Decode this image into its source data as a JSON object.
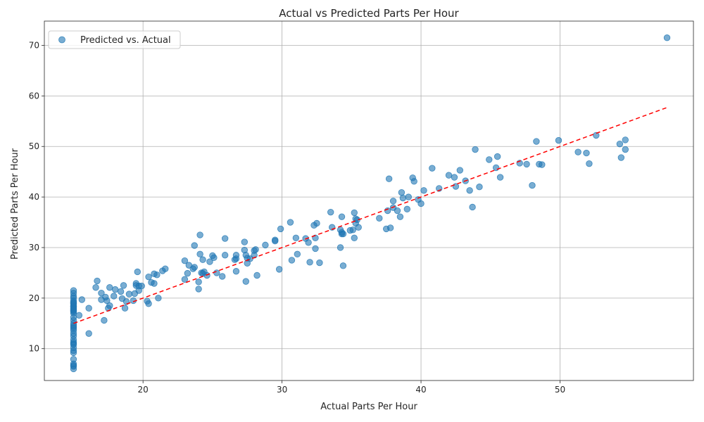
{
  "chart_data": {
    "type": "scatter",
    "title": "Actual vs Predicted Parts Per Hour",
    "xlabel": "Actual Parts Per Hour",
    "ylabel": "Predicted Parts Per Hour",
    "xlim": [
      12.9,
      59.6
    ],
    "ylim": [
      3.7,
      74.8
    ],
    "xticks": [
      20,
      30,
      40,
      50
    ],
    "yticks": [
      10,
      20,
      30,
      40,
      50,
      60,
      70
    ],
    "grid": true,
    "legend_position": "top-left",
    "series": [
      {
        "name": "Predicted vs. Actual",
        "color": "#1f77b4",
        "x": [
          15,
          15,
          15,
          15,
          15,
          15,
          15,
          15,
          15,
          15,
          15,
          15,
          15,
          15,
          15,
          15,
          15,
          15,
          15,
          15,
          15,
          15,
          15,
          15,
          15,
          15,
          15,
          15,
          15,
          15,
          15,
          15,
          15,
          15,
          15,
          15,
          15,
          15,
          15.4,
          15.6,
          16.1,
          16.1,
          16.6,
          16.7,
          17.0,
          17.0,
          17.2,
          17.3,
          17.4,
          17.5,
          17.6,
          17.6,
          17.9,
          18.0,
          18.4,
          18.5,
          18.6,
          18.7,
          18.8,
          19.0,
          19.3,
          19.4,
          19.5,
          19.5,
          19.6,
          19.7,
          19.7,
          19.9,
          20.3,
          20.4,
          20.4,
          20.6,
          20.8,
          20.8,
          21.0,
          21.1,
          21.4,
          21.6,
          23.0,
          23.0,
          23.2,
          23.3,
          23.6,
          23.7,
          23.7,
          24.0,
          24.0,
          24.1,
          24.1,
          24.2,
          24.3,
          24.3,
          24.4,
          24.6,
          24.8,
          25.0,
          25.1,
          25.3,
          25.7,
          25.9,
          25.9,
          26.6,
          26.7,
          26.7,
          26.7,
          27.3,
          27.3,
          27.4,
          27.4,
          27.5,
          27.5,
          27.7,
          28.0,
          28.0,
          28.1,
          28.2,
          28.8,
          29.5,
          29.5,
          29.8,
          29.9,
          30.6,
          30.7,
          31.0,
          31.1,
          31.7,
          31.9,
          32.0,
          32.3,
          32.4,
          32.4,
          32.5,
          32.7,
          33.5,
          33.6,
          34.2,
          34.2,
          34.3,
          34.3,
          34.3,
          34.4,
          34.4,
          34.9,
          35.1,
          35.2,
          35.2,
          35.3,
          35.3,
          35.4,
          35.5,
          37.0,
          37.5,
          37.6,
          37.7,
          37.8,
          38.0,
          38.0,
          38.3,
          38.5,
          38.6,
          38.7,
          39.0,
          39.1,
          39.4,
          39.5,
          39.8,
          40.0,
          40.2,
          40.8,
          41.3,
          42.0,
          42.4,
          42.5,
          42.8,
          43.2,
          43.5,
          43.7,
          43.9,
          44.2,
          44.9,
          45.4,
          45.5,
          45.7,
          47.1,
          47.6,
          48.0,
          48.3,
          48.5,
          48.7,
          49.9,
          51.3,
          51.9,
          52.1,
          52.6,
          54.3,
          54.4,
          54.7,
          54.7,
          57.7
        ],
        "y": [
          21.5,
          21.0,
          20.4,
          20.0,
          19.5,
          19.2,
          18.9,
          18.6,
          18.3,
          18.0,
          17.8,
          17.5,
          17.3,
          17.0,
          16.2,
          15.6,
          15.0,
          14.6,
          14.3,
          14.0,
          13.6,
          13.0,
          12.5,
          11.8,
          11.3,
          11.0,
          10.8,
          10.2,
          9.6,
          9.2,
          7.9,
          7.0,
          6.7,
          6.5,
          6.0,
          17.6,
          18.3,
          19.0,
          16.6,
          19.7,
          13.0,
          18.0,
          22.1,
          23.4,
          21.0,
          19.7,
          15.6,
          20.2,
          19.5,
          18.0,
          18.5,
          22.1,
          20.4,
          21.7,
          21.3,
          19.9,
          22.5,
          18.0,
          19.3,
          20.8,
          19.5,
          20.9,
          22.9,
          22.5,
          25.2,
          21.5,
          22.4,
          22.4,
          19.4,
          24.2,
          18.9,
          23.1,
          22.9,
          24.8,
          24.6,
          20.0,
          25.4,
          25.8,
          23.7,
          27.4,
          24.9,
          26.5,
          25.8,
          26.1,
          30.4,
          21.8,
          23.2,
          32.5,
          28.7,
          25.0,
          27.6,
          24.9,
          25.2,
          24.5,
          27.2,
          28.4,
          28.0,
          25.0,
          24.3,
          31.8,
          28.5,
          27.6,
          27.8,
          28.5,
          25.3,
          31.1,
          29.5,
          28.5,
          23.3,
          27.9,
          26.9,
          27.8,
          29.4,
          28.5,
          29.6,
          24.5,
          30.5,
          31.5,
          31.3,
          25.7,
          33.7,
          35.0,
          27.5,
          31.9,
          28.7,
          31.8,
          31.0,
          27.1,
          34.4,
          31.9,
          29.8,
          34.8,
          27.0,
          37.0,
          34.0,
          33.5,
          30.0,
          33.0,
          32.7,
          36.1,
          26.4,
          32.7,
          33.4,
          33.5,
          31.9,
          36.9,
          34.8,
          35.7,
          35.5,
          34.0,
          35.8,
          33.7,
          37.3,
          43.6,
          33.9,
          39.2,
          37.9,
          37.3,
          36.1,
          40.9,
          39.8,
          37.6,
          40.0,
          43.8,
          43.1,
          39.5,
          38.7,
          41.3,
          45.7,
          41.7,
          44.3,
          43.9,
          42.1,
          45.3,
          43.2,
          41.3,
          38.0,
          49.4,
          42.0,
          47.4,
          45.8,
          48.0,
          43.9,
          46.7,
          46.5,
          42.3,
          51.0,
          46.5,
          46.4,
          51.2,
          48.9,
          48.7,
          46.6,
          52.2,
          50.5,
          47.8,
          51.3,
          49.4,
          71.5
        ]
      },
      {
        "name": "",
        "color": "#ff0000",
        "style": "dashed",
        "x": [
          15,
          57.7
        ],
        "y": [
          15.0,
          57.7
        ]
      }
    ]
  }
}
